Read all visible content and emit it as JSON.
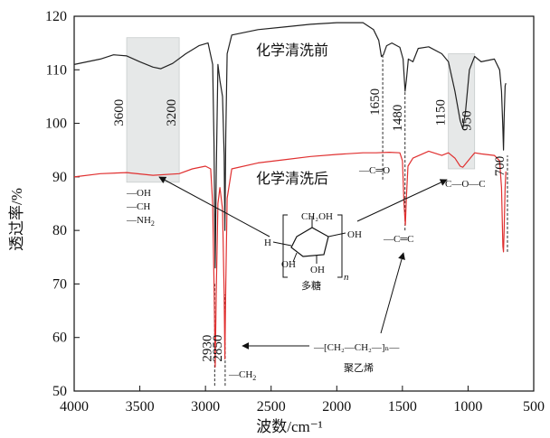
{
  "chart_data": {
    "type": "line",
    "xlabel": "波数/cm⁻¹",
    "ylabel": "透过率/%",
    "xlim": [
      4000,
      500
    ],
    "ylim": [
      50,
      120
    ],
    "x_ticks": [
      4000,
      3500,
      3000,
      2500,
      2000,
      1500,
      1000,
      500
    ],
    "y_ticks": [
      50,
      60,
      70,
      80,
      90,
      100,
      110,
      120
    ],
    "series": [
      {
        "name": "化学清洗前",
        "color": "#222222",
        "points": [
          [
            4000,
            111.0
          ],
          [
            3900,
            111.5
          ],
          [
            3800,
            112.0
          ],
          [
            3700,
            112.8
          ],
          [
            3600,
            112.6
          ],
          [
            3500,
            111.5
          ],
          [
            3400,
            110.5
          ],
          [
            3340,
            110.2
          ],
          [
            3250,
            111.2
          ],
          [
            3150,
            113.0
          ],
          [
            3050,
            114.5
          ],
          [
            2980,
            115.0
          ],
          [
            2945,
            111.0
          ],
          [
            2935,
            96.0
          ],
          [
            2926,
            73.0
          ],
          [
            2918,
            90.0
          ],
          [
            2905,
            111.0
          ],
          [
            2890,
            108.0
          ],
          [
            2870,
            105.0
          ],
          [
            2858,
            94.0
          ],
          [
            2852,
            80.0
          ],
          [
            2845,
            98.0
          ],
          [
            2835,
            113.0
          ],
          [
            2800,
            116.5
          ],
          [
            2600,
            117.5
          ],
          [
            2400,
            118.0
          ],
          [
            2200,
            118.5
          ],
          [
            2000,
            118.8
          ],
          [
            1800,
            118.8
          ],
          [
            1720,
            117.5
          ],
          [
            1680,
            115.5
          ],
          [
            1660,
            112.5
          ],
          [
            1645,
            112.8
          ],
          [
            1620,
            114.5
          ],
          [
            1580,
            115.0
          ],
          [
            1520,
            114.2
          ],
          [
            1495,
            112.0
          ],
          [
            1480,
            106.0
          ],
          [
            1470,
            108.0
          ],
          [
            1455,
            112.0
          ],
          [
            1420,
            111.5
          ],
          [
            1380,
            114.0
          ],
          [
            1300,
            114.3
          ],
          [
            1200,
            113.0
          ],
          [
            1150,
            111.5
          ],
          [
            1100,
            106.0
          ],
          [
            1060,
            100.5
          ],
          [
            1040,
            99.0
          ],
          [
            1020,
            102.0
          ],
          [
            990,
            110.0
          ],
          [
            950,
            112.5
          ],
          [
            900,
            111.5
          ],
          [
            800,
            112.0
          ],
          [
            760,
            110.0
          ],
          [
            745,
            106.0
          ],
          [
            735,
            99.0
          ],
          [
            730,
            95.0
          ],
          [
            725,
            101.0
          ],
          [
            718,
            107.0
          ],
          [
            712,
            107.5
          ]
        ]
      },
      {
        "name": "化学清洗后",
        "color": "#e03030",
        "points": [
          [
            4000,
            90.0
          ],
          [
            3800,
            90.6
          ],
          [
            3600,
            90.8
          ],
          [
            3400,
            90.3
          ],
          [
            3200,
            90.6
          ],
          [
            3100,
            91.5
          ],
          [
            3000,
            92.0
          ],
          [
            2960,
            91.5
          ],
          [
            2945,
            85.0
          ],
          [
            2935,
            70.0
          ],
          [
            2926,
            54.5
          ],
          [
            2918,
            68.0
          ],
          [
            2905,
            85.0
          ],
          [
            2890,
            88.0
          ],
          [
            2870,
            84.0
          ],
          [
            2858,
            68.0
          ],
          [
            2852,
            56.0
          ],
          [
            2845,
            70.0
          ],
          [
            2835,
            86.0
          ],
          [
            2800,
            91.5
          ],
          [
            2600,
            92.6
          ],
          [
            2400,
            93.2
          ],
          [
            2200,
            93.8
          ],
          [
            2000,
            94.2
          ],
          [
            1800,
            94.5
          ],
          [
            1700,
            94.5
          ],
          [
            1600,
            94.6
          ],
          [
            1520,
            94.5
          ],
          [
            1500,
            93.0
          ],
          [
            1488,
            85.0
          ],
          [
            1478,
            81.0
          ],
          [
            1470,
            86.0
          ],
          [
            1458,
            92.0
          ],
          [
            1420,
            93.5
          ],
          [
            1300,
            94.8
          ],
          [
            1200,
            94.0
          ],
          [
            1150,
            94.5
          ],
          [
            1100,
            93.5
          ],
          [
            1060,
            92.0
          ],
          [
            1040,
            91.8
          ],
          [
            1000,
            93.0
          ],
          [
            950,
            94.5
          ],
          [
            900,
            94.3
          ],
          [
            800,
            94.0
          ],
          [
            760,
            93.0
          ],
          [
            745,
            88.0
          ],
          [
            735,
            77.0
          ],
          [
            730,
            76.0
          ],
          [
            725,
            80.0
          ],
          [
            718,
            88.0
          ],
          [
            712,
            91.0
          ]
        ]
      }
    ],
    "shaded_regions": [
      {
        "x_from": 3600,
        "x_to": 3200,
        "y_from": 89,
        "y_to": 116
      },
      {
        "x_from": 1150,
        "x_to": 950,
        "y_from": 91.5,
        "y_to": 113
      }
    ],
    "band_labels": [
      {
        "text": "3600",
        "x": 3600,
        "y": 102
      },
      {
        "text": "3200",
        "x": 3200,
        "y": 102
      },
      {
        "text": "1650",
        "x": 1650,
        "y": 104
      },
      {
        "text": "1480",
        "x": 1480,
        "y": 101
      },
      {
        "text": "1150",
        "x": 1150,
        "y": 102
      },
      {
        "text": "950",
        "x": 950,
        "y": 100.5
      },
      {
        "text": "700",
        "x": 700,
        "y": 92
      },
      {
        "text": "2930",
        "x": 2930,
        "y": 58
      },
      {
        "text": "2850",
        "x": 2850,
        "y": 58
      }
    ],
    "dashed_markers": [
      {
        "x": 1650,
        "y_from": 89.5,
        "y_to": 113
      },
      {
        "x": 1480,
        "y_from": 80,
        "y_to": 106
      },
      {
        "x": 700,
        "y_from": 76,
        "y_to": 94
      },
      {
        "x": 2930,
        "y_from": 51,
        "y_to": 70
      },
      {
        "x": 2850,
        "y_from": 51,
        "y_to": 68
      }
    ],
    "annotations": {
      "before_label": "化学清洗前",
      "after_label": "化学清洗后",
      "oh": "—OH",
      "ch": "—CH",
      "nh2": "—NH",
      "nh2_sub": "2",
      "co": "—C═O",
      "coc": "C—O—C",
      "cc": "—C═C",
      "ch2": "—CH",
      "ch2_sub": "2",
      "poly_formula": "—[CH₂—CH₂—]ₙ—",
      "poly_name": "聚乙烯",
      "sugar_name": "多糖",
      "sugar_h": "H",
      "sugar_ch2oh": "CH₂OH",
      "sugar_oh_right": "OH",
      "sugar_oh_left": "OH",
      "sugar_oh_bottom": "OH",
      "sugar_n": "n"
    }
  }
}
